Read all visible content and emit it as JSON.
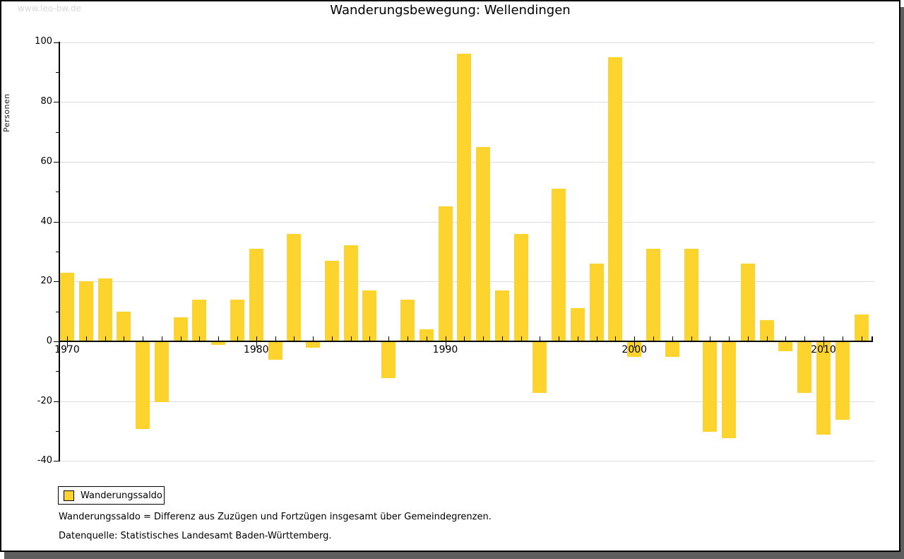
{
  "page": {
    "logo": "www.leo-bw.de",
    "title": "Wanderungsbewegung: Wellendingen"
  },
  "chart_data": {
    "type": "bar",
    "title": "Wanderungsbewegung: Wellendingen",
    "ylabel": "Personen",
    "xlabel": "",
    "ylim": [
      -40,
      100
    ],
    "y_major_step": 20,
    "y_minor_step": 10,
    "grid": true,
    "legend_position": "bottom-left",
    "x_labeled_ticks": [
      1970,
      1980,
      1990,
      2000,
      2010
    ],
    "series_name": "Wanderungssaldo",
    "x": [
      1970,
      1971,
      1972,
      1973,
      1974,
      1975,
      1976,
      1977,
      1978,
      1979,
      1980,
      1981,
      1982,
      1983,
      1984,
      1985,
      1986,
      1987,
      1988,
      1989,
      1990,
      1991,
      1992,
      1993,
      1994,
      1995,
      1996,
      1997,
      1998,
      1999,
      2000,
      2001,
      2002,
      2003,
      2004,
      2005,
      2006,
      2007,
      2008,
      2009,
      2010,
      2011,
      2012
    ],
    "values": [
      23,
      20,
      21,
      10,
      -29,
      -20,
      8,
      14,
      -1,
      14,
      31,
      -6,
      36,
      -2,
      27,
      32,
      17,
      -12,
      14,
      4,
      45,
      96,
      65,
      17,
      36,
      -17,
      51,
      11,
      26,
      95,
      -5,
      31,
      -5,
      31,
      -30,
      -32,
      26,
      7,
      -3,
      -17,
      -31,
      -26,
      9
    ],
    "colors": {
      "bar": "#FDD32E",
      "grid": "#DCDCDC",
      "axis": "#000000"
    }
  },
  "legend": {
    "label": "Wanderungssaldo"
  },
  "footnotes": {
    "line1": "Wanderungssaldo = Differenz aus Zuzügen und Fortzügen insgesamt über Gemeindegrenzen.",
    "line2": "Datenquelle: Statistisches Landesamt Baden-Württemberg."
  }
}
